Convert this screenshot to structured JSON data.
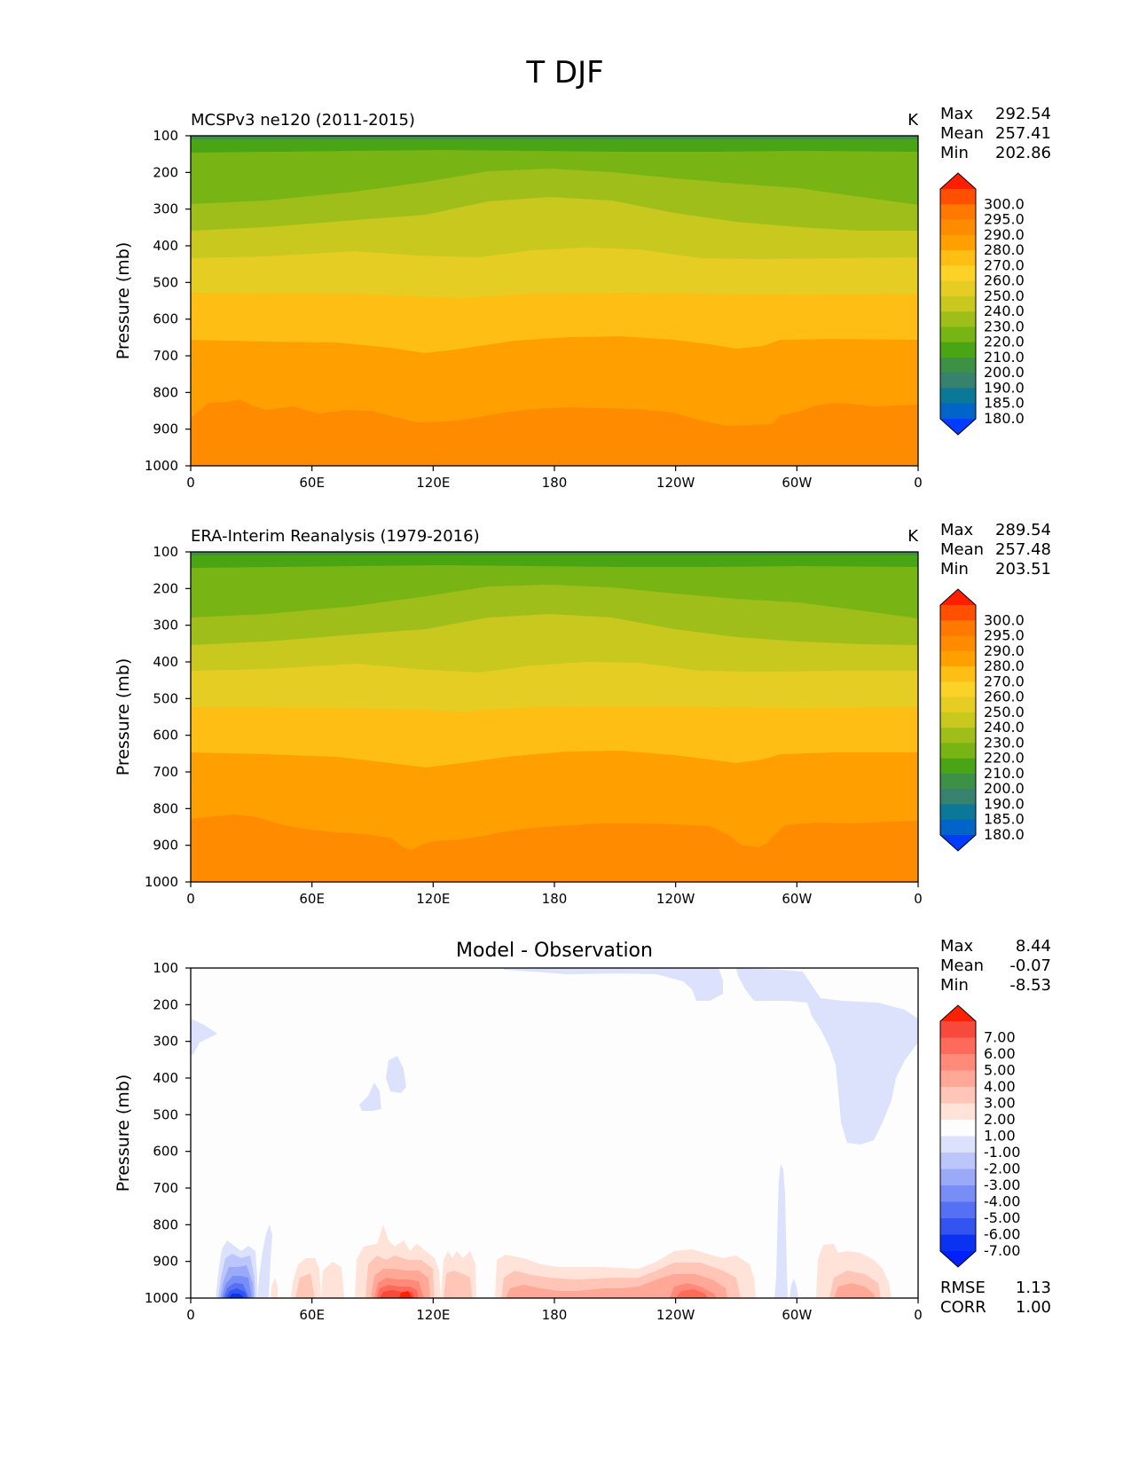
{
  "page_title": "T DJF",
  "x_ticks": [
    "0",
    "60E",
    "120E",
    "180",
    "120W",
    "60W",
    "0"
  ],
  "y_ticks": [
    "100",
    "200",
    "300",
    "400",
    "500",
    "600",
    "700",
    "800",
    "900",
    "1000"
  ],
  "ylabel": "Pressure (mb)",
  "stats_labels": {
    "max": "Max",
    "mean": "Mean",
    "min": "Min",
    "rmse": "RMSE",
    "corr": "CORR"
  },
  "temp_levels": [
    "300.0",
    "295.0",
    "290.0",
    "280.0",
    "270.0",
    "260.0",
    "250.0",
    "240.0",
    "230.0",
    "220.0",
    "210.0",
    "200.0",
    "190.0",
    "185.0",
    "180.0"
  ],
  "temp_colors": [
    "#ff1e00",
    "#ff5000",
    "#ff7800",
    "#ff8c00",
    "#ffa000",
    "#ffbe14",
    "#fcd228",
    "#e6cd23",
    "#c8c81e",
    "#a0be19",
    "#78b414",
    "#4aa514",
    "#3c9146",
    "#37826e",
    "#0a7896",
    "#0064c8",
    "#003cff"
  ],
  "diff_levels": [
    "7.00",
    "6.00",
    "5.00",
    "4.00",
    "3.00",
    "2.00",
    "1.00",
    "-1.00",
    "-2.00",
    "-3.00",
    "-4.00",
    "-5.00",
    "-6.00",
    "-7.00"
  ],
  "diff_colors": [
    "#ff2000",
    "#f74a3c",
    "#ff6a5a",
    "#ff8a7a",
    "#ffa898",
    "#ffc6b8",
    "#ffe2d8",
    "#fdfdfd",
    "#dde2fc",
    "#bcc6fa",
    "#9aaaf8",
    "#788ef6",
    "#5670f4",
    "#3454f2",
    "#0a32f0",
    "#0020ff"
  ],
  "panels": [
    {
      "title": "MCSPv3 ne120 (2011-2015)",
      "units": "K",
      "max": "292.54",
      "mean": "257.41",
      "min": "202.86"
    },
    {
      "title": "ERA-Interim Reanalysis (1979-2016)",
      "units": "K",
      "max": "289.54",
      "mean": "257.48",
      "min": "203.51"
    },
    {
      "title": "Model - Observation",
      "units": "",
      "max": "8.44",
      "mean": "-0.07",
      "min": "-8.53",
      "rmse": "1.13",
      "corr": "1.00"
    }
  ],
  "chart_data": [
    {
      "type": "heatmap",
      "title": "MCSPv3 ne120 (2011-2015)",
      "units": "K",
      "xlabel": "",
      "ylabel": "Pressure (mb)",
      "x_range": [
        "0",
        "0"
      ],
      "ylim": [
        1000,
        100
      ],
      "contour_levels_K_approx": [
        {
          "level": 200,
          "pressure_mb": 142
        },
        {
          "level": 210,
          "pressure_mb": 215
        },
        {
          "level": 220,
          "pressure_mb": 285
        },
        {
          "level": 230,
          "pressure_mb": 345
        },
        {
          "level": 240,
          "pressure_mb": 420
        },
        {
          "level": 250,
          "pressure_mb": 540
        },
        {
          "level": 260,
          "pressure_mb": 660
        },
        {
          "level": 270,
          "pressure_mb": 840
        },
        {
          "level": 280,
          "pressure_mb": 1000
        }
      ],
      "max": 292.54,
      "mean": 257.41,
      "min": 202.86
    },
    {
      "type": "heatmap",
      "title": "ERA-Interim Reanalysis (1979-2016)",
      "units": "K",
      "xlabel": "",
      "ylabel": "Pressure (mb)",
      "x_range": [
        "0",
        "0"
      ],
      "ylim": [
        1000,
        100
      ],
      "contour_levels_K_approx": [
        {
          "level": 200,
          "pressure_mb": 142
        },
        {
          "level": 210,
          "pressure_mb": 215
        },
        {
          "level": 220,
          "pressure_mb": 285
        },
        {
          "level": 230,
          "pressure_mb": 345
        },
        {
          "level": 240,
          "pressure_mb": 420
        },
        {
          "level": 250,
          "pressure_mb": 540
        },
        {
          "level": 260,
          "pressure_mb": 660
        },
        {
          "level": 270,
          "pressure_mb": 850
        }
      ],
      "max": 289.54,
      "mean": 257.48,
      "min": 203.51
    },
    {
      "type": "heatmap",
      "title": "Model - Observation",
      "xlabel": "",
      "ylabel": "Pressure (mb)",
      "x_range": [
        "0",
        "0"
      ],
      "ylim": [
        1000,
        100
      ],
      "max": 8.44,
      "mean": -0.07,
      "min": -8.53,
      "rmse": 1.13,
      "corr": 1.0
    }
  ]
}
